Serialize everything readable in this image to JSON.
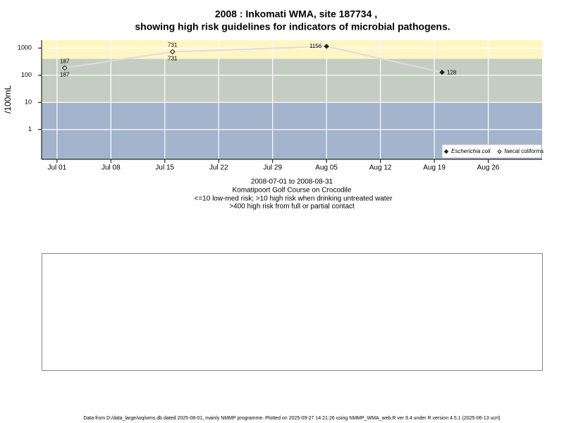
{
  "chart_data": {
    "type": "line",
    "title": [
      "2008 : Inkomati WMA, site 187734 ,",
      "showing high risk guidelines for indicators of microbial pathogens."
    ],
    "y_label": "/100mL",
    "captions": [
      "2008-07-01 to 2008-08-31",
      "Komatipoort Golf Course on Crocodile",
      "<=10 low-med risk; >10 high risk when drinking untreated water",
      ">400 high risk from full or partial contact"
    ],
    "x": [
      "07-02",
      "07-16",
      "08-05",
      "08-20"
    ],
    "series": [
      {
        "name": "Escherichia coli",
        "color": "#222222",
        "marker": "filled",
        "values": [
          187,
          731,
          1156,
          128
        ]
      },
      {
        "name": "faecal coliforms",
        "color": "#222222",
        "marker": "open",
        "values": [
          187,
          731,
          null,
          null
        ]
      }
    ],
    "xlim": [
      "06-29",
      "09-02"
    ],
    "xticks": [
      {
        "value": "07-01",
        "label": "Jul 01"
      },
      {
        "value": "07-08",
        "label": "Jul 08"
      },
      {
        "value": "07-15",
        "label": "Jul 15"
      },
      {
        "value": "07-22",
        "label": "Jul 22"
      },
      {
        "value": "07-29",
        "label": "Jul 29"
      },
      {
        "value": "08-05",
        "label": "Aug 05"
      },
      {
        "value": "08-12",
        "label": "Aug 12"
      },
      {
        "value": "08-19",
        "label": "Aug 19"
      },
      {
        "value": "08-26",
        "label": "Aug 26"
      }
    ],
    "ylim": [
      0.08,
      1950
    ],
    "yticks": [
      1,
      10,
      100,
      1000
    ],
    "log_y": true,
    "grid": true,
    "band_breaks": [
      10,
      400
    ],
    "band_colors": [
      "#a3b4cc",
      "#c4cdc2",
      "#fff6c4"
    ],
    "line_color": "#dddddd",
    "legend": "bottom-right"
  },
  "footer": "Data from D:/data_large/wq/wms.db dated 2025-08-01, mainly NMMP programme. Plotted on 2025-09-27 14:21:26 using NMMP_WMA_web.R ver 9.4 under R version 4.5.1 (2025-06-13 ucrt)"
}
